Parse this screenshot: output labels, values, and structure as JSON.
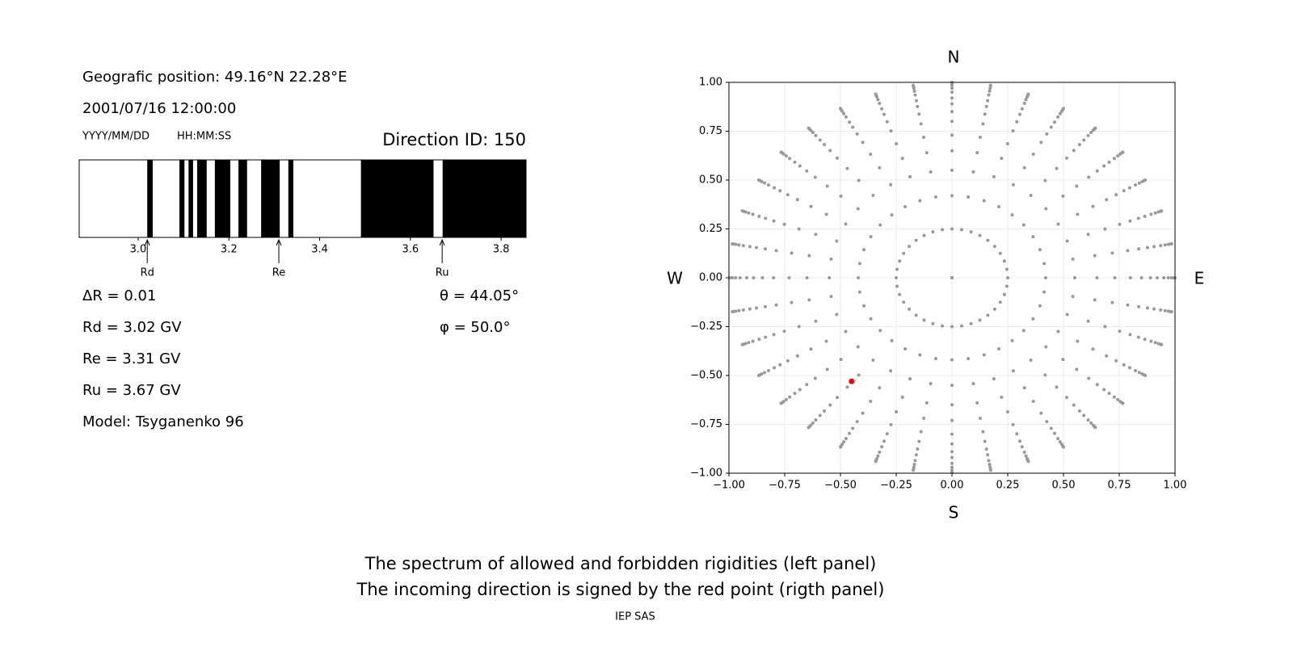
{
  "info": {
    "position": "Geografic position: 49.16°N 22.28°E",
    "datetime": "2001/07/16 12:00:00",
    "date_format": "YYYY/MM/DD",
    "time_format": "HH:MM:SS",
    "delta_r": "ΔR = 0.01",
    "rd": "Rd = 3.02 GV",
    "re": "Re = 3.31 GV",
    "ru": "Ru = 3.67 GV",
    "model": "Model: Tsyganenko 96",
    "theta": "θ = 44.05°",
    "phi": "φ = 50.0°"
  },
  "caption": [
    "The spectrum of allowed and forbidden rigidities (left panel)",
    "The incoming direction is signed by the red point (rigth panel)"
  ],
  "footer": "IEP SAS",
  "chart_data": [
    {
      "type": "spectrum",
      "title": "Direction ID: 150",
      "xlim": [
        2.87,
        3.855
      ],
      "xticks": [
        {
          "value": 3,
          "label": "3.0"
        },
        3.2,
        3.4,
        3.6,
        3.8
      ],
      "color": "#000000",
      "forbidden": [
        [
          3.02,
          3.032
        ],
        [
          3.091,
          3.102
        ],
        [
          3.111,
          3.121
        ],
        [
          3.13,
          3.151
        ],
        [
          3.169,
          3.203
        ],
        [
          3.221,
          3.24
        ],
        [
          3.271,
          3.312
        ],
        [
          3.331,
          3.342
        ],
        [
          3.491,
          3.651
        ],
        [
          3.671,
          3.855
        ]
      ],
      "markers": [
        {
          "label": "Rd",
          "value": 3.02
        },
        {
          "label": "Re",
          "value": 3.31
        },
        {
          "label": "Ru",
          "value": 3.67
        }
      ]
    },
    {
      "type": "scatter",
      "compass": {
        "N": "N",
        "S": "S",
        "W": "W",
        "E": "E"
      },
      "xlim": [
        -1,
        1
      ],
      "ylim": [
        -1,
        1
      ],
      "grid": true,
      "xticks": [
        {
          "value": -1,
          "label": "−1.00"
        },
        {
          "value": -0.75,
          "label": "−0.75"
        },
        {
          "value": -0.5,
          "label": "−0.50"
        },
        {
          "value": -0.25,
          "label": "−0.25"
        },
        {
          "value": 0,
          "label": "0.00"
        },
        0.25,
        {
          "value": 0.5,
          "label": "0.50"
        },
        0.75,
        {
          "value": 1,
          "label": "1.00"
        }
      ],
      "yticks": [
        {
          "value": -1,
          "label": "−1.00"
        },
        {
          "value": -0.75,
          "label": "−0.75"
        },
        {
          "value": -0.5,
          "label": "−0.50"
        },
        {
          "value": -0.25,
          "label": "−0.25"
        },
        {
          "value": 0,
          "label": "0.00"
        },
        0.25,
        {
          "value": 0.5,
          "label": "0.50"
        },
        0.75,
        {
          "value": 1,
          "label": "1.00"
        }
      ],
      "grid_points": {
        "color": "#999999",
        "radii": [
          0,
          0.25,
          0.42,
          0.55,
          0.65,
          0.73,
          0.8,
          0.85,
          0.89,
          0.92,
          0.95,
          0.97,
          0.985,
          0.995,
          1.0
        ],
        "azimuths": [
          0,
          10,
          20,
          30,
          40,
          50,
          60,
          70,
          80,
          90,
          100,
          110,
          120,
          130,
          140,
          150,
          160,
          170,
          180,
          190,
          200,
          210,
          220,
          230,
          240,
          250,
          260,
          270,
          280,
          290,
          300,
          310,
          320,
          330,
          340,
          350
        ]
      },
      "series": [
        {
          "color": "#ff0000",
          "x": [
            -0.45
          ],
          "y": [
            -0.53
          ]
        }
      ]
    }
  ]
}
